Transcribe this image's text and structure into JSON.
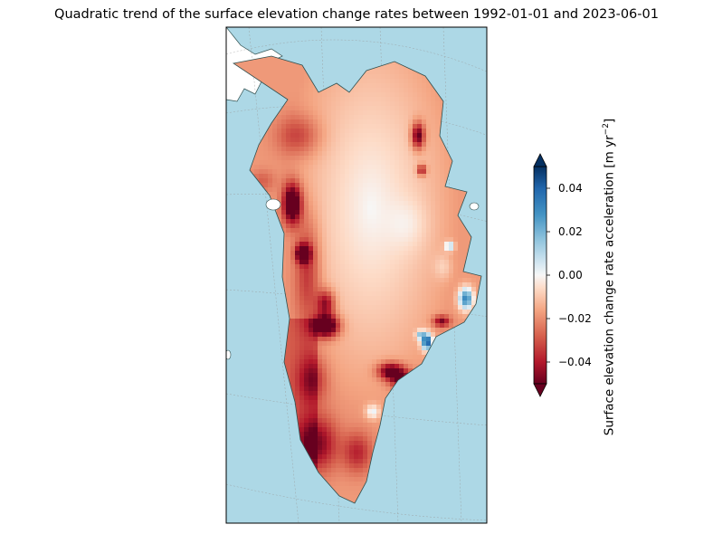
{
  "figure": {
    "title": "Quadratic trend of the surface elevation change rates between 1992-01-01 and 2023-06-01"
  },
  "map": {
    "region": "Greenland",
    "projection": "polar stereographic (north)",
    "ocean_color": "#add8e6",
    "land_color": "#ffffff",
    "coastline_color": "#2f4f4f",
    "graticule": true
  },
  "colorbar": {
    "label": "Surface elevation change rate acceleration [m yr",
    "label_exponent": "−2",
    "label_close": "]",
    "colormap": "RdBu",
    "vmin": -0.05,
    "vmax": 0.05,
    "extend": "both",
    "ticks": [
      {
        "value": 0.04,
        "label": "0.04"
      },
      {
        "value": 0.02,
        "label": "0.02"
      },
      {
        "value": 0.0,
        "label": "0.00"
      },
      {
        "value": -0.02,
        "label": "−0.02"
      },
      {
        "value": -0.04,
        "label": "−0.04"
      }
    ]
  },
  "features": [
    {
      "name": "northwest-margin",
      "value": -0.045
    },
    {
      "name": "west-central-hotspot",
      "value": -0.05
    },
    {
      "name": "southeast-coastal-positive",
      "value": 0.045
    },
    {
      "name": "east-coast-positive",
      "value": 0.04
    },
    {
      "name": "south-west-negative",
      "value": -0.03
    },
    {
      "name": "interior",
      "value": 0.0
    }
  ]
}
